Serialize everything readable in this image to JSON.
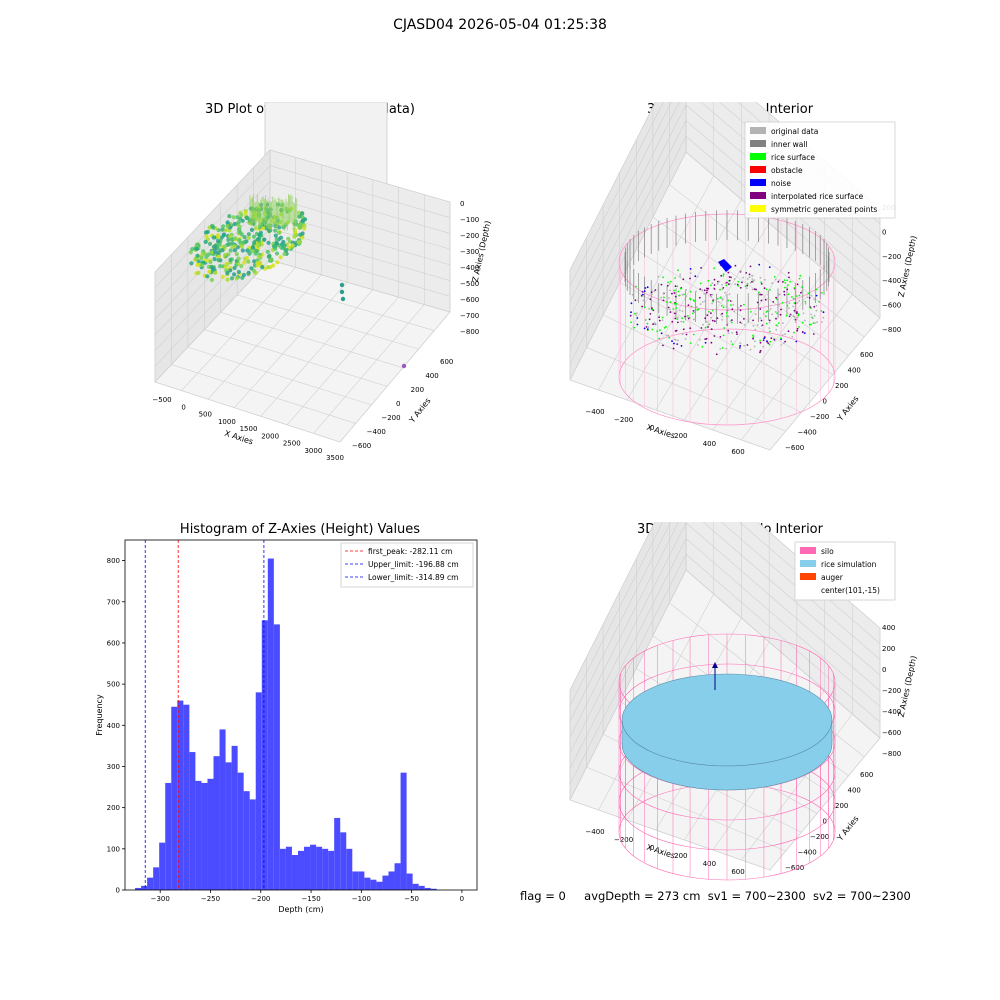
{
  "suptitle": "CJASD04 2026-05-04 01:25:38",
  "footer": {
    "flag": "flag = 0",
    "avg_depth": "avgDepth = 273 cm",
    "sv1": "sv1 = 700~2300",
    "sv2": "sv2 = 700~2300"
  },
  "colors": {
    "histogram": "#4b4bff",
    "first_peak_line": "#ff0000",
    "limit_lines": "#0000ff",
    "silo": "#ff69b4",
    "rice_simulation": "#87ceeb",
    "auger": "#ff4500"
  },
  "chart_data": [
    {
      "type": "scatter",
      "projection": "3d",
      "title": "3D Plot of Silo Interior(row data)",
      "xlabel": "X Axies",
      "ylabel": "Y Axies",
      "zlabel": "Z Axies (Depth)",
      "x_ticks": [
        "−500",
        "0",
        "500",
        "1000",
        "1500",
        "2000",
        "2500",
        "3000",
        "3500"
      ],
      "y_ticks": [
        "−600",
        "−400",
        "−200",
        "0",
        "200",
        "400",
        "600"
      ],
      "z_ticks": [
        "0",
        "−100",
        "−200",
        "−300",
        "−400",
        "−500",
        "−600",
        "−700",
        "−800"
      ],
      "colormap": "viridis",
      "grid": true
    },
    {
      "type": "scatter",
      "projection": "3d",
      "title": "3D classify of Silo Interior",
      "xlabel": "X Axies",
      "ylabel": "Y Axies",
      "zlabel": "Z Axies (Depth)",
      "x_ticks": [
        "−400",
        "−200",
        "0",
        "200",
        "400",
        "600"
      ],
      "y_ticks": [
        "−600",
        "−400",
        "−200",
        "0",
        "200",
        "400",
        "600"
      ],
      "z_ticks": [
        "200",
        "0",
        "−200",
        "−400",
        "−600",
        "−800"
      ],
      "legend": [
        {
          "label": "original data",
          "color": "#b3b3b3"
        },
        {
          "label": "inner wall",
          "color": "#808080"
        },
        {
          "label": "rice surface",
          "color": "#00ff00"
        },
        {
          "label": "obstacle",
          "color": "#ff0000"
        },
        {
          "label": "noise",
          "color": "#0000ff"
        },
        {
          "label": "interpolated rice surface",
          "color": "#800080"
        },
        {
          "label": "symmetric generated points",
          "color": "#ffff00"
        }
      ],
      "legend_position": "top-right",
      "grid": true
    },
    {
      "type": "bar",
      "title": "Histogram of Z-Axies (Height) Values",
      "xlabel": "Depth (cm)",
      "ylabel": "Frequency",
      "xlim": [
        -335,
        15
      ],
      "ylim": [
        0,
        850
      ],
      "x_ticks": [
        -300,
        -250,
        -200,
        -150,
        -100,
        -50,
        0
      ],
      "y_ticks": [
        0,
        100,
        200,
        300,
        400,
        500,
        600,
        700,
        800
      ],
      "bin_start": -325,
      "bin_width": 6,
      "values": [
        5,
        10,
        30,
        55,
        115,
        260,
        445,
        460,
        450,
        335,
        265,
        260,
        270,
        325,
        390,
        310,
        350,
        285,
        240,
        220,
        480,
        655,
        805,
        645,
        100,
        105,
        85,
        95,
        105,
        110,
        105,
        100,
        95,
        175,
        140,
        100,
        45,
        45,
        30,
        25,
        20,
        35,
        45,
        65,
        285,
        40,
        15,
        10,
        5,
        3
      ],
      "vlines": [
        {
          "label": "first_peak: -282.11 cm",
          "x": -282.11,
          "color": "#ff0000"
        },
        {
          "label": "Upper_limit: -196.88 cm",
          "x": -196.88,
          "color": "#0000ff"
        },
        {
          "label": "Lower_limit: -314.89 cm",
          "x": -314.89,
          "color": "#0000ff"
        }
      ],
      "legend_position": "top-right",
      "grid": false
    },
    {
      "type": "area",
      "projection": "3d",
      "title": "3D simulation of Silo Interior",
      "xlabel": "X Axies",
      "ylabel": "Y Axies",
      "zlabel": "Z Axies (Depth)",
      "x_ticks": [
        "−400",
        "−200",
        "0",
        "200",
        "400",
        "600"
      ],
      "y_ticks": [
        "−600",
        "−400",
        "−200",
        "0",
        "200",
        "400",
        "600"
      ],
      "z_ticks": [
        "400",
        "200",
        "0",
        "−200",
        "−400",
        "−600",
        "−800"
      ],
      "legend": [
        {
          "label": "silo",
          "color": "#ff69b4"
        },
        {
          "label": "rice simulation",
          "color": "#87ceeb"
        },
        {
          "label": "auger",
          "color": "#ff4500"
        },
        {
          "label": "center(101,-15)",
          "color": "none"
        }
      ],
      "legend_position": "top-right",
      "grid": true
    }
  ]
}
